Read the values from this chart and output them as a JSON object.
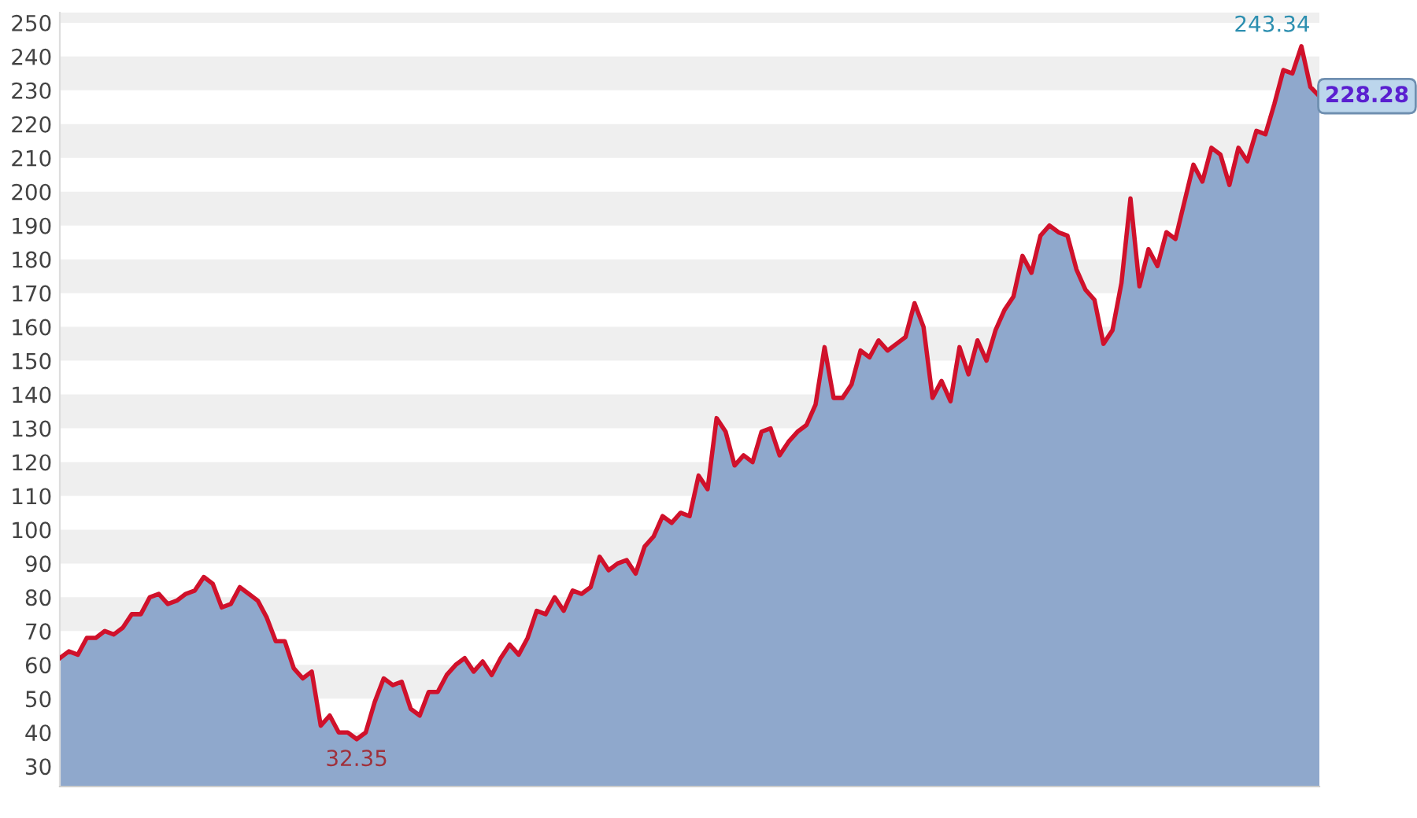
{
  "chart_data": {
    "type": "line",
    "categories": [
      null,
      null,
      null,
      null,
      null,
      null,
      null,
      null,
      null,
      null,
      null,
      null,
      null,
      null,
      null,
      null,
      null,
      null,
      null,
      null,
      null,
      null,
      null,
      null,
      null,
      null,
      null,
      null,
      null,
      null,
      null,
      null,
      null,
      null,
      null,
      null,
      null,
      null,
      null,
      null,
      null,
      null,
      null,
      null,
      null,
      null,
      null,
      null,
      null,
      null,
      null,
      null,
      null,
      null,
      null,
      null,
      null,
      null,
      null,
      null,
      null,
      null,
      null,
      null,
      null,
      null,
      null,
      null,
      null,
      null,
      null,
      null,
      null,
      null,
      null,
      null,
      null,
      null,
      null,
      null,
      null,
      null,
      null,
      null,
      null,
      null,
      null,
      null,
      null,
      null,
      null,
      null,
      null,
      null,
      null,
      null,
      null,
      null,
      null,
      null,
      null,
      null,
      null,
      null,
      null,
      null,
      null,
      null,
      null,
      null,
      null,
      null,
      null,
      null,
      null,
      null,
      null,
      null,
      null,
      null,
      null,
      null,
      null,
      null,
      null,
      null,
      null,
      null,
      null,
      null,
      null,
      null,
      null,
      null,
      null,
      null,
      null,
      null,
      null,
      null,
      null
    ],
    "series": [
      {
        "type": "area",
        "color": "#8fa8cc",
        "values": [
          62,
          64,
          63,
          68,
          68,
          70,
          69,
          71,
          75,
          75,
          80,
          81,
          78,
          79,
          81,
          82,
          86,
          84,
          77,
          78,
          83,
          81,
          79,
          74,
          67,
          67,
          59,
          56,
          58,
          42,
          45,
          40,
          40,
          38,
          40,
          49,
          56,
          54,
          55,
          47,
          45,
          52,
          52,
          57,
          60,
          62,
          58,
          61,
          57,
          62,
          66,
          63,
          68,
          76,
          75,
          80,
          76,
          82,
          81,
          83,
          92,
          88,
          90,
          91,
          87,
          95,
          98,
          104,
          102,
          105,
          104,
          116,
          112,
          133,
          129,
          119,
          122,
          120,
          129,
          130,
          122,
          126,
          129,
          131,
          137,
          154,
          139,
          139,
          143,
          153,
          151,
          156,
          153,
          155,
          157,
          167,
          160,
          139,
          144,
          138,
          154,
          146,
          156,
          150,
          159,
          165,
          169,
          181,
          176,
          187,
          190,
          188,
          187,
          177,
          171,
          168,
          155,
          159,
          173,
          198,
          172,
          183,
          178,
          188,
          186,
          197,
          208,
          203,
          213,
          211,
          202,
          213,
          209,
          218,
          217,
          226,
          236,
          235,
          243,
          231,
          228.28
        ]
      },
      {
        "color": "#d0112b",
        "values": [
          62,
          64,
          63,
          68,
          68,
          70,
          69,
          71,
          75,
          75,
          80,
          81,
          78,
          79,
          81,
          82,
          86,
          84,
          77,
          78,
          83,
          81,
          79,
          74,
          67,
          67,
          59,
          56,
          58,
          42,
          45,
          40,
          40,
          38,
          40,
          49,
          56,
          54,
          55,
          47,
          45,
          52,
          52,
          57,
          60,
          62,
          58,
          61,
          57,
          62,
          66,
          63,
          68,
          76,
          75,
          80,
          76,
          82,
          81,
          83,
          92,
          88,
          90,
          91,
          87,
          95,
          98,
          104,
          102,
          105,
          104,
          116,
          112,
          133,
          129,
          119,
          122,
          120,
          129,
          130,
          122,
          126,
          129,
          131,
          137,
          154,
          139,
          139,
          143,
          153,
          151,
          156,
          153,
          155,
          157,
          167,
          160,
          139,
          144,
          138,
          154,
          146,
          156,
          150,
          159,
          165,
          169,
          181,
          176,
          187,
          190,
          188,
          187,
          177,
          171,
          168,
          155,
          159,
          173,
          198,
          172,
          183,
          178,
          188,
          186,
          197,
          208,
          203,
          213,
          211,
          202,
          213,
          209,
          218,
          217,
          226,
          236,
          235,
          243,
          231,
          228.28
        ],
        "value_labels": [
          null,
          null,
          null,
          null,
          null,
          null,
          null,
          null,
          null,
          null,
          null,
          null,
          null,
          null,
          null,
          null,
          null,
          null,
          null,
          null,
          null,
          null,
          null,
          null,
          null,
          null,
          null,
          null,
          null,
          null,
          null,
          null,
          null,
          null,
          null,
          null,
          null,
          null,
          null,
          null,
          null,
          null,
          null,
          null,
          null,
          null,
          null,
          null,
          null,
          null,
          null,
          null,
          null,
          null,
          null,
          null,
          null,
          null,
          null,
          null,
          null,
          null,
          null,
          null,
          null,
          null,
          null,
          null,
          null,
          null,
          null,
          null,
          null,
          null,
          null,
          null,
          null,
          null,
          null,
          null,
          null,
          null,
          null,
          null,
          null,
          null,
          null,
          null,
          null,
          null,
          null,
          null,
          null,
          null,
          null,
          null,
          null,
          null,
          null,
          null,
          null,
          null,
          null,
          null,
          null,
          null,
          null,
          null,
          null,
          null,
          null,
          null,
          null,
          null,
          null,
          null,
          null,
          null,
          null,
          null,
          null,
          null,
          null,
          null,
          null,
          null,
          null,
          null,
          null,
          null,
          null,
          null,
          null,
          null,
          null,
          null,
          null,
          null,
          null,
          null,
          "228.28"
        ]
      }
    ],
    "ylim": [
      24,
      253
    ],
    "yticks": [
      30,
      40,
      50,
      60,
      70,
      80,
      90,
      100,
      110,
      120,
      130,
      140,
      150,
      160,
      170,
      180,
      190,
      200,
      210,
      220,
      230,
      240,
      250
    ],
    "bands": [
      {
        "axis": "y",
        "from": 30,
        "to": 40,
        "color": "#efefef"
      },
      {
        "axis": "y",
        "from": 50,
        "to": 60,
        "color": "#efefef"
      },
      {
        "axis": "y",
        "from": 70,
        "to": 80,
        "color": "#efefef"
      },
      {
        "axis": "y",
        "from": 90,
        "to": 100,
        "color": "#efefef"
      },
      {
        "axis": "y",
        "from": 110,
        "to": 120,
        "color": "#efefef"
      },
      {
        "axis": "y",
        "from": 130,
        "to": 140,
        "color": "#efefef"
      },
      {
        "axis": "y",
        "from": 150,
        "to": 160,
        "color": "#efefef"
      },
      {
        "axis": "y",
        "from": 170,
        "to": 180,
        "color": "#efefef"
      },
      {
        "axis": "y",
        "from": 190,
        "to": 200,
        "color": "#efefef"
      },
      {
        "axis": "y",
        "from": 210,
        "to": 220,
        "color": "#efefef"
      },
      {
        "axis": "y",
        "from": 230,
        "to": 240,
        "color": "#efefef"
      },
      {
        "axis": "y",
        "from": 250,
        "to": 253,
        "color": "#efefef"
      }
    ],
    "annotations": [
      "243.34",
      "32.35"
    ]
  }
}
